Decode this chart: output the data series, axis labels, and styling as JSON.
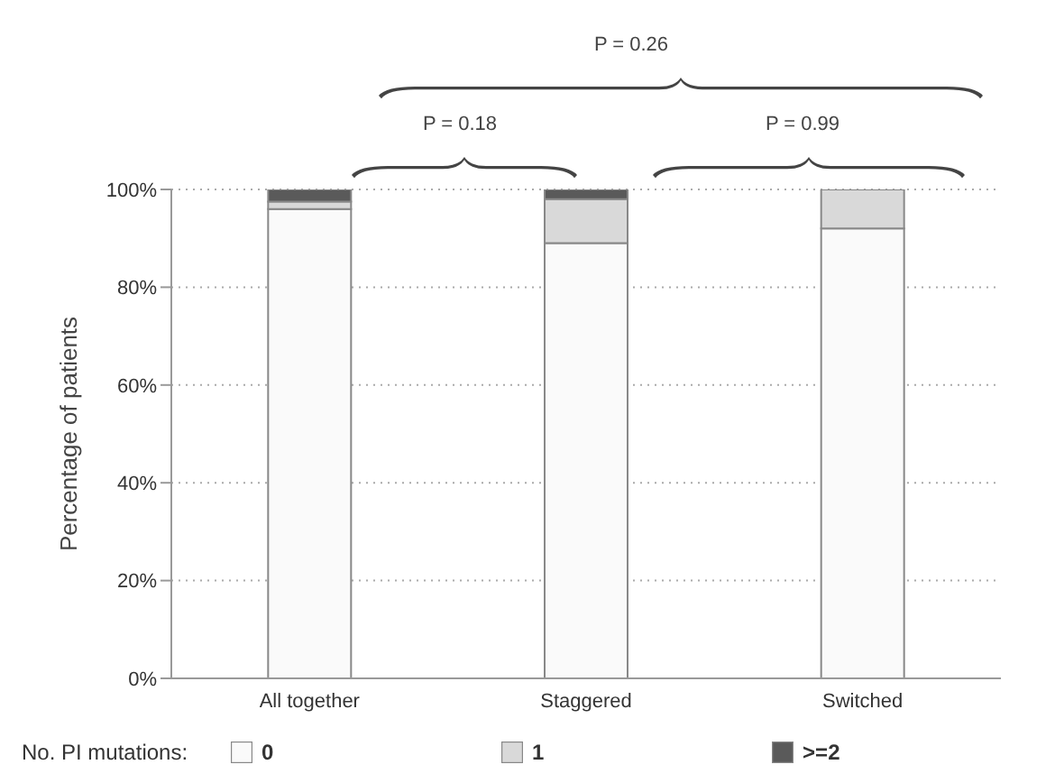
{
  "chart_data": {
    "type": "bar",
    "stacked": true,
    "ylabel": "Percentage of patients",
    "legend_title": "No. PI mutations:",
    "legend": "bottom",
    "grid": "y",
    "categories": [
      "All together",
      "Staggered",
      "Switched"
    ],
    "series": [
      {
        "name": "0",
        "color": "#fafafa",
        "values": [
          96,
          89,
          92
        ]
      },
      {
        "name": "1",
        "color": "#d9d9d9",
        "values": [
          1.5,
          9,
          8
        ]
      },
      {
        "name": ">=2",
        "color": "#5a5a5a",
        "values": [
          2.5,
          2,
          0
        ]
      }
    ],
    "ylim": [
      0,
      100
    ],
    "yticks": [
      {
        "value": 0,
        "label": "0%"
      },
      {
        "value": 20,
        "label": "20%"
      },
      {
        "value": 40,
        "label": "40%"
      },
      {
        "value": 60,
        "label": "60%"
      },
      {
        "value": 80,
        "label": "80%"
      },
      {
        "value": 100,
        "label": "100%"
      }
    ],
    "annotations": [
      "P = 0.26",
      "P = 0.18",
      "P = 0.99"
    ]
  }
}
